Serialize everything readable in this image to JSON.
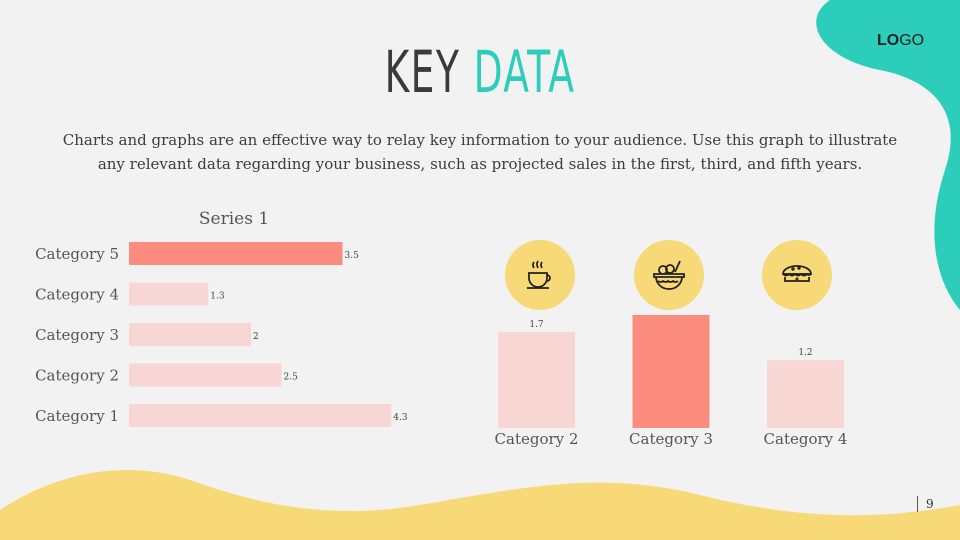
{
  "slide": {
    "title_part1": "KEY",
    "title_part2": "DATA",
    "description": "Charts and graphs are an effective way to relay key information to your audience. Use this graph to illustrate any relevant data regarding your business, such as projected sales in the first, third, and fifth years.",
    "logo_bold": "LO",
    "logo_rest": "GO",
    "page_number": "9",
    "colors": {
      "accent_teal": "#2dcdbb",
      "yellow": "#f8d978",
      "bar_highlight": "#fb8c7e",
      "bar_light": "#f7d6d4"
    }
  },
  "chart_data": [
    {
      "type": "bar",
      "orientation": "horizontal",
      "title": "Series 1",
      "categories": [
        "Category 5",
        "Category 4",
        "Category 3",
        "Category 2",
        "Category 1"
      ],
      "values": [
        3.5,
        1.3,
        2,
        2.5,
        4.3
      ],
      "data_labels": [
        "3.5",
        "1.3",
        "2",
        "2.5",
        "4.3"
      ],
      "highlight": "Category 5",
      "grid": false
    },
    {
      "type": "bar",
      "orientation": "vertical",
      "categories": [
        "Category 2",
        "Category 3",
        "Category 4"
      ],
      "values": [
        1.7,
        2.0,
        1.2
      ],
      "data_labels": [
        "1.7",
        "",
        "1.2"
      ],
      "icons": [
        "coffee-cup-icon",
        "food-basket-icon",
        "pie-icon"
      ],
      "highlight": "Category 3",
      "grid": false
    }
  ]
}
